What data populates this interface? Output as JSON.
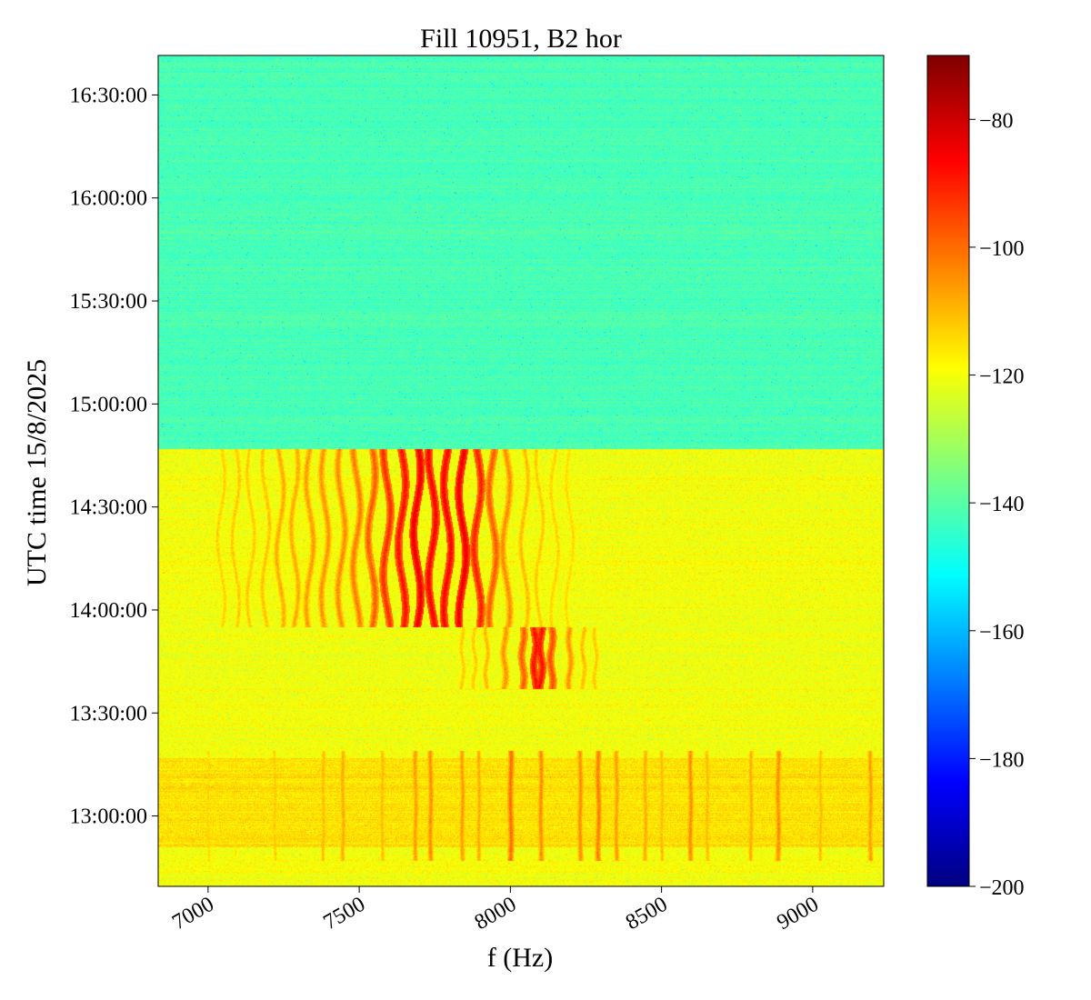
{
  "chart_data": {
    "type": "heatmap",
    "title": "Fill 10951, B2 hor",
    "xlabel": "f (Hz)",
    "ylabel": "UTC time 15/8/2025",
    "xlim": [
      6835,
      9235
    ],
    "ylim": [
      "12:39:30",
      "16:41:30"
    ],
    "x_ticks": [
      7000,
      7500,
      8000,
      8500,
      9000
    ],
    "x_tick_labels": [
      "7000",
      "7500",
      "8000",
      "8500",
      "9000"
    ],
    "y_ticks": [
      "13:00:00",
      "13:30:00",
      "14:00:00",
      "14:30:00",
      "15:00:00",
      "15:30:00",
      "16:00:00",
      "16:30:00"
    ],
    "y_tick_labels": [
      "13:00:00",
      "13:30:00",
      "14:00:00",
      "14:30:00",
      "15:00:00",
      "15:30:00",
      "16:00:00",
      "16:30:00"
    ],
    "colormap": "jet",
    "colorbar": {
      "range": [
        -200,
        -70
      ],
      "ticks": [
        -200,
        -180,
        -160,
        -140,
        -120,
        -100,
        -80
      ],
      "tick_labels": [
        "−200",
        "−180",
        "−160",
        "−140",
        "−120",
        "−100",
        "−80"
      ]
    },
    "regions": [
      {
        "time_from": "14:47:00",
        "time_to": "16:41:30",
        "level": -142
      },
      {
        "time_from": "12:39:30",
        "time_to": "14:47:00",
        "level": -120
      },
      {
        "time_from": "12:51:00",
        "time_to": "13:17:00",
        "level": -115
      }
    ],
    "lines_upper": {
      "time_from": "13:55:00",
      "time_to": "14:47:00",
      "freqs": [
        7042,
        7090,
        7140,
        7190,
        7237,
        7285,
        7335,
        7385,
        7440,
        7490,
        7540,
        7590,
        7640,
        7690,
        7740,
        7790,
        7840,
        7890,
        7940,
        7985,
        8045,
        8095,
        8145,
        8195
      ],
      "levels": [
        -113,
        -112,
        -112,
        -111,
        -108,
        -108,
        -106,
        -105,
        -104,
        -102,
        -98,
        -92,
        -88,
        -84,
        -86,
        -86,
        -84,
        -90,
        -98,
        -104,
        -110,
        -112,
        -113,
        -114
      ]
    },
    "lines_lower": {
      "time_from": "13:37:00",
      "time_to": "13:55:00",
      "freqs": [
        7840,
        7880,
        7920,
        7980,
        8040,
        8080,
        8100,
        8135,
        8195,
        8240,
        8280
      ],
      "levels": [
        -112,
        -112,
        -110,
        -105,
        -98,
        -88,
        -88,
        -96,
        -105,
        -110,
        -112
      ]
    },
    "lines_bottom": {
      "time_from": "12:47:00",
      "time_to": "13:19:00",
      "freqs": [
        7000,
        7090,
        7220,
        7380,
        7445,
        7575,
        7685,
        7735,
        7840,
        7895,
        8000,
        8100,
        8230,
        8290,
        8350,
        8445,
        8500,
        8595,
        8650,
        8795,
        8885,
        9025,
        9190
      ],
      "levels": [
        -114,
        -116,
        -112,
        -110,
        -108,
        -110,
        -106,
        -104,
        -106,
        -108,
        -100,
        -104,
        -104,
        -102,
        -106,
        -108,
        -110,
        -104,
        -110,
        -108,
        -104,
        -110,
        -106
      ]
    }
  }
}
